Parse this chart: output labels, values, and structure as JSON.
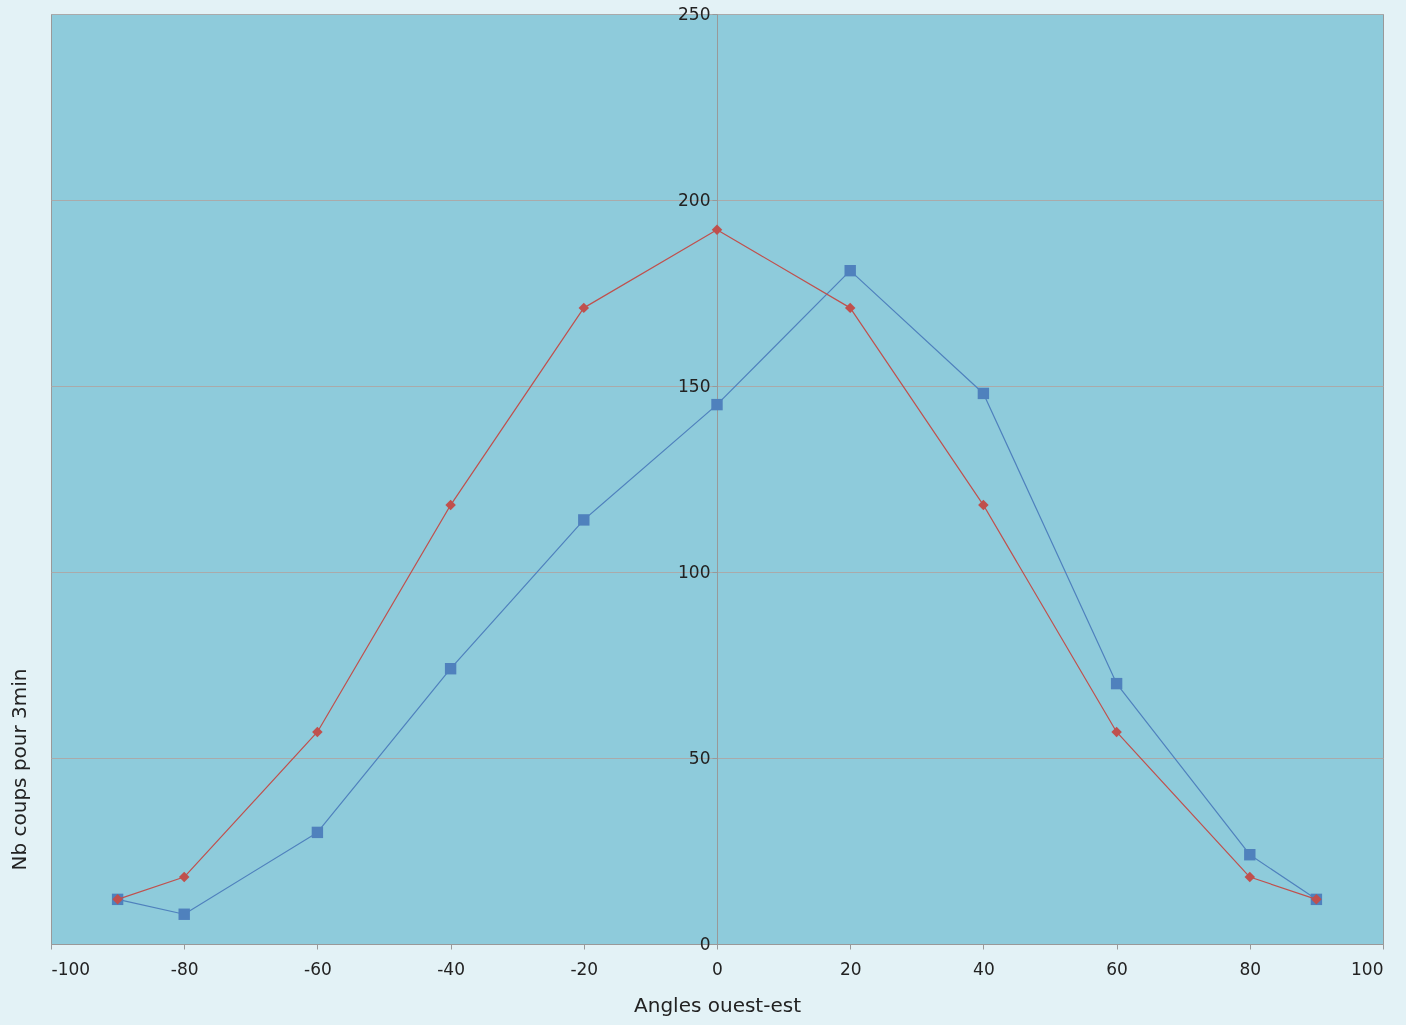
{
  "chart_data": {
    "type": "line",
    "xlabel": "Angles ouest-est",
    "ylabel": "Nb coups pour 3min",
    "x": [
      -90,
      -80,
      -60,
      -40,
      -20,
      0,
      20,
      40,
      60,
      80,
      90
    ],
    "series": [
      {
        "color": "#4f81bd",
        "marker": "square",
        "values": [
          12,
          8,
          30,
          74,
          114,
          145,
          181,
          148,
          70,
          24,
          12
        ]
      },
      {
        "color": "#c0504d",
        "marker": "diamond",
        "values": [
          12,
          18,
          57,
          118,
          171,
          192,
          171,
          118,
          57,
          18,
          12
        ]
      }
    ],
    "xlim": [
      -100,
      100
    ],
    "xticks": [
      -100,
      -80,
      -60,
      -40,
      -20,
      0,
      20,
      40,
      60,
      80,
      100
    ],
    "ylim": [
      0,
      250
    ],
    "yticks": [
      0,
      50,
      100,
      150,
      200,
      250
    ],
    "grid": "y"
  }
}
